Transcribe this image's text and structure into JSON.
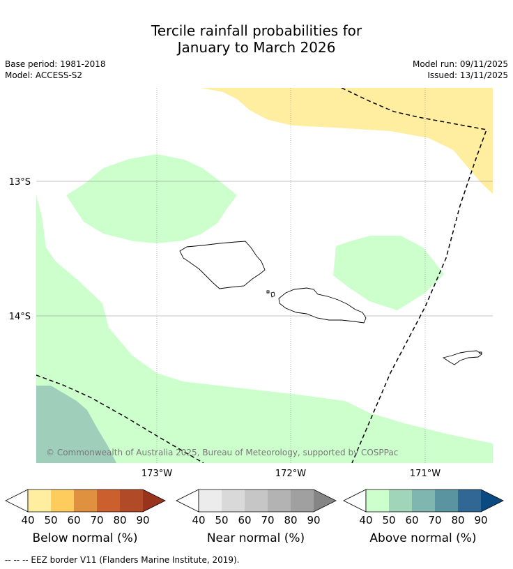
{
  "title": {
    "line1": "Tercile rainfall probabilities for",
    "line2": "January to March 2026"
  },
  "meta": {
    "base_period": "Base period: 1981-2018",
    "model": "Model: ACCESS-S2",
    "model_run": "Model run: 09/11/2025",
    "issued": "Issued: 13/11/2025"
  },
  "map": {
    "lat_labels": [
      "13°S",
      "14°S"
    ],
    "lon_labels": [
      "173°W",
      "172°W",
      "171°W"
    ],
    "copyright": "© Commonwealth of Australia 2025, Bureau of Meteorology, supported by COSPPac",
    "land_color": "#000000",
    "gridline_color": "#888888"
  },
  "colorbars": [
    {
      "name": "below",
      "label": "Below normal (%)",
      "ticks": [
        "40",
        "50",
        "60",
        "70",
        "80",
        "90"
      ],
      "colors": [
        "#ffeda0",
        "#fecc5c",
        "#e0913f",
        "#cc5f2e",
        "#b04a27",
        "#98341e"
      ]
    },
    {
      "name": "near",
      "label": "Near normal (%)",
      "ticks": [
        "40",
        "50",
        "60",
        "70",
        "80",
        "90"
      ],
      "colors": [
        "#ececec",
        "#d9d9d9",
        "#c6c6c6",
        "#b3b3b3",
        "#a0a0a0",
        "#858585"
      ]
    },
    {
      "name": "above",
      "label": "Above normal (%)",
      "ticks": [
        "40",
        "50",
        "60",
        "70",
        "80",
        "90"
      ],
      "colors": [
        "#ccffcc",
        "#a1d5b9",
        "#80b6b0",
        "#5a94a1",
        "#316893",
        "#0b4a80"
      ]
    }
  ],
  "fill_colors": {
    "below_40": "#ffeda0",
    "above_40": "#ccffcc",
    "above_50": "#9fcfba"
  },
  "footer": "--  --  -- EEZ border V11 (Flanders Marine Institute, 2019)."
}
